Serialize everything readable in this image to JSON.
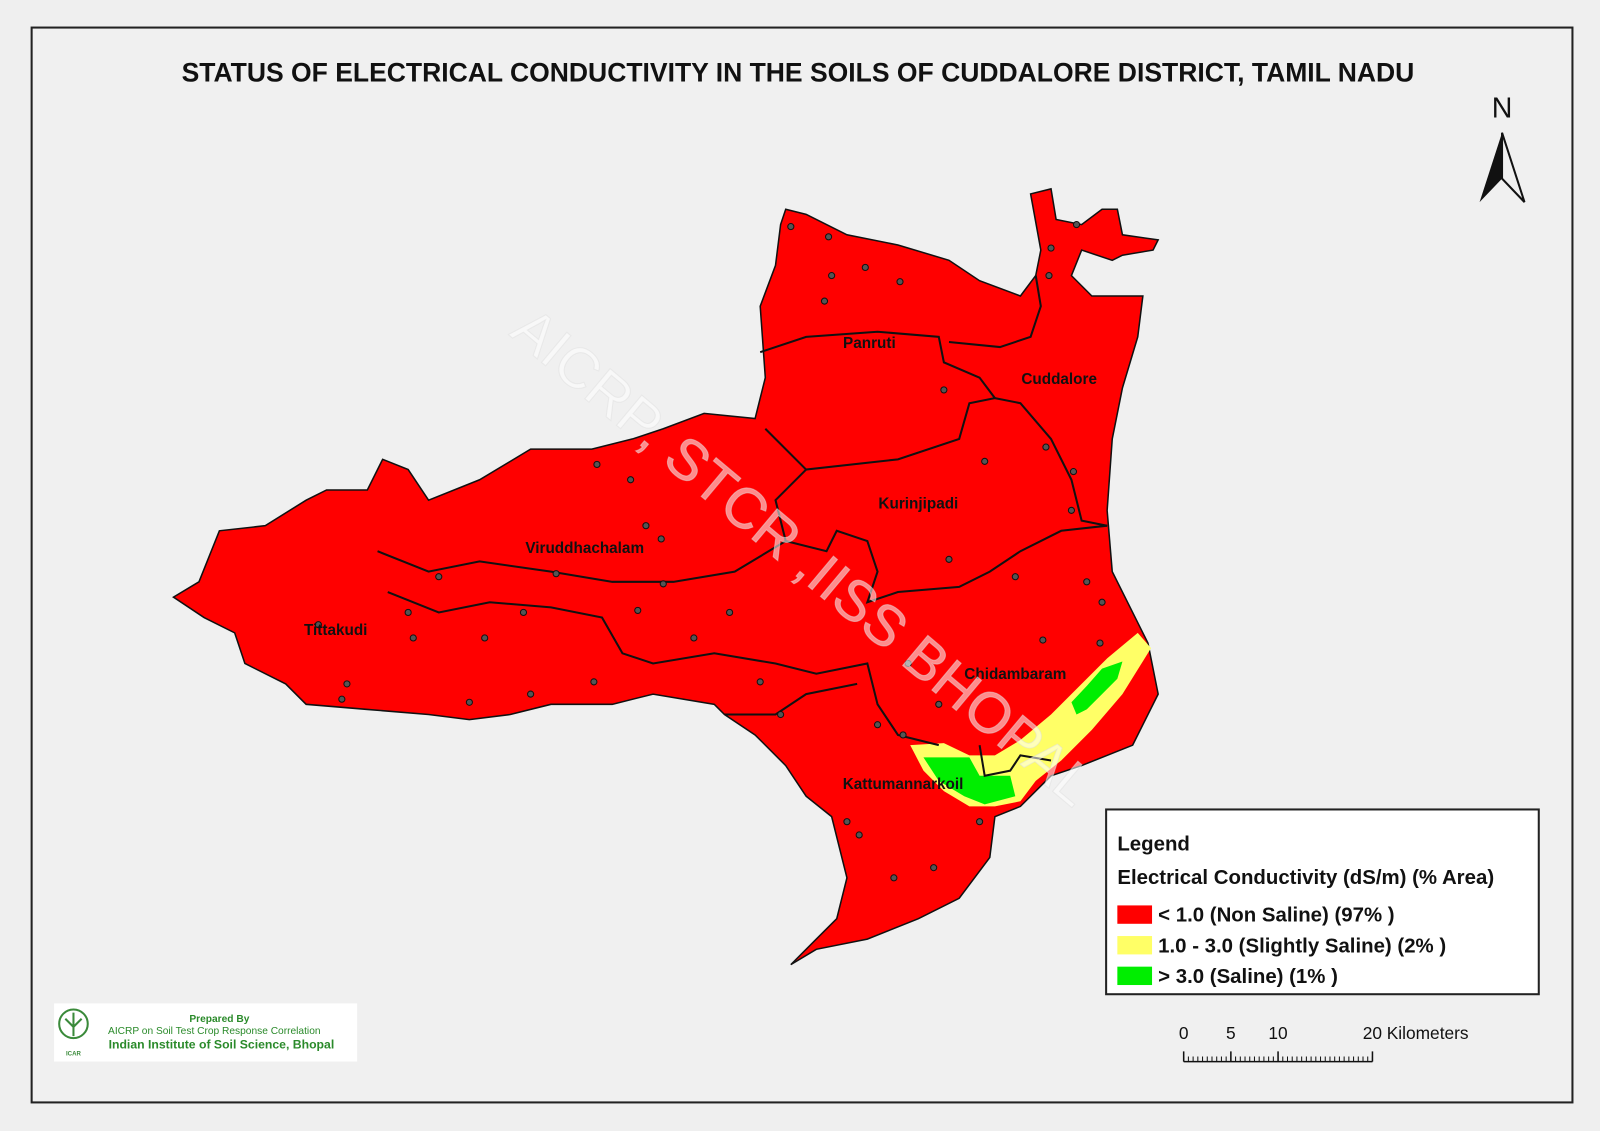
{
  "title": "STATUS OF ELECTRICAL CONDUCTIVITY  IN THE SOILS OF CUDDALORE DISTRICT, TAMIL NADU",
  "north_arrow": "N",
  "blocks": [
    "Panruti",
    "Cuddalore",
    "Kurinjipadi",
    "Viruddhachalam",
    "Tittakudi",
    "Chidambaram",
    "Kattumannarkoil"
  ],
  "legend": {
    "title": "Legend",
    "subtitle": "Electrical Conductivity (dS/m) (% Area)",
    "items": [
      {
        "label": "< 1.0 (Non Saline)  (97% )",
        "color": "#ff0000"
      },
      {
        "label": "1.0 - 3.0 (Slightly Saline) (2% )",
        "color": "#ffff66"
      },
      {
        "label": "> 3.0 (Saline) (1% )",
        "color": "#00ee00"
      }
    ]
  },
  "scale_bar": {
    "ticks": [
      0,
      5,
      10,
      20
    ],
    "unit": "Kilometers"
  },
  "watermark": "AICRP, STCR ,IISS BHOPAL",
  "credit": {
    "lines": [
      "Prepared By",
      "AICRP on Soil Test Crop Response Correlation",
      "Indian Institute of Soil Science, Bhopal"
    ],
    "logo_text": "ICAR"
  }
}
